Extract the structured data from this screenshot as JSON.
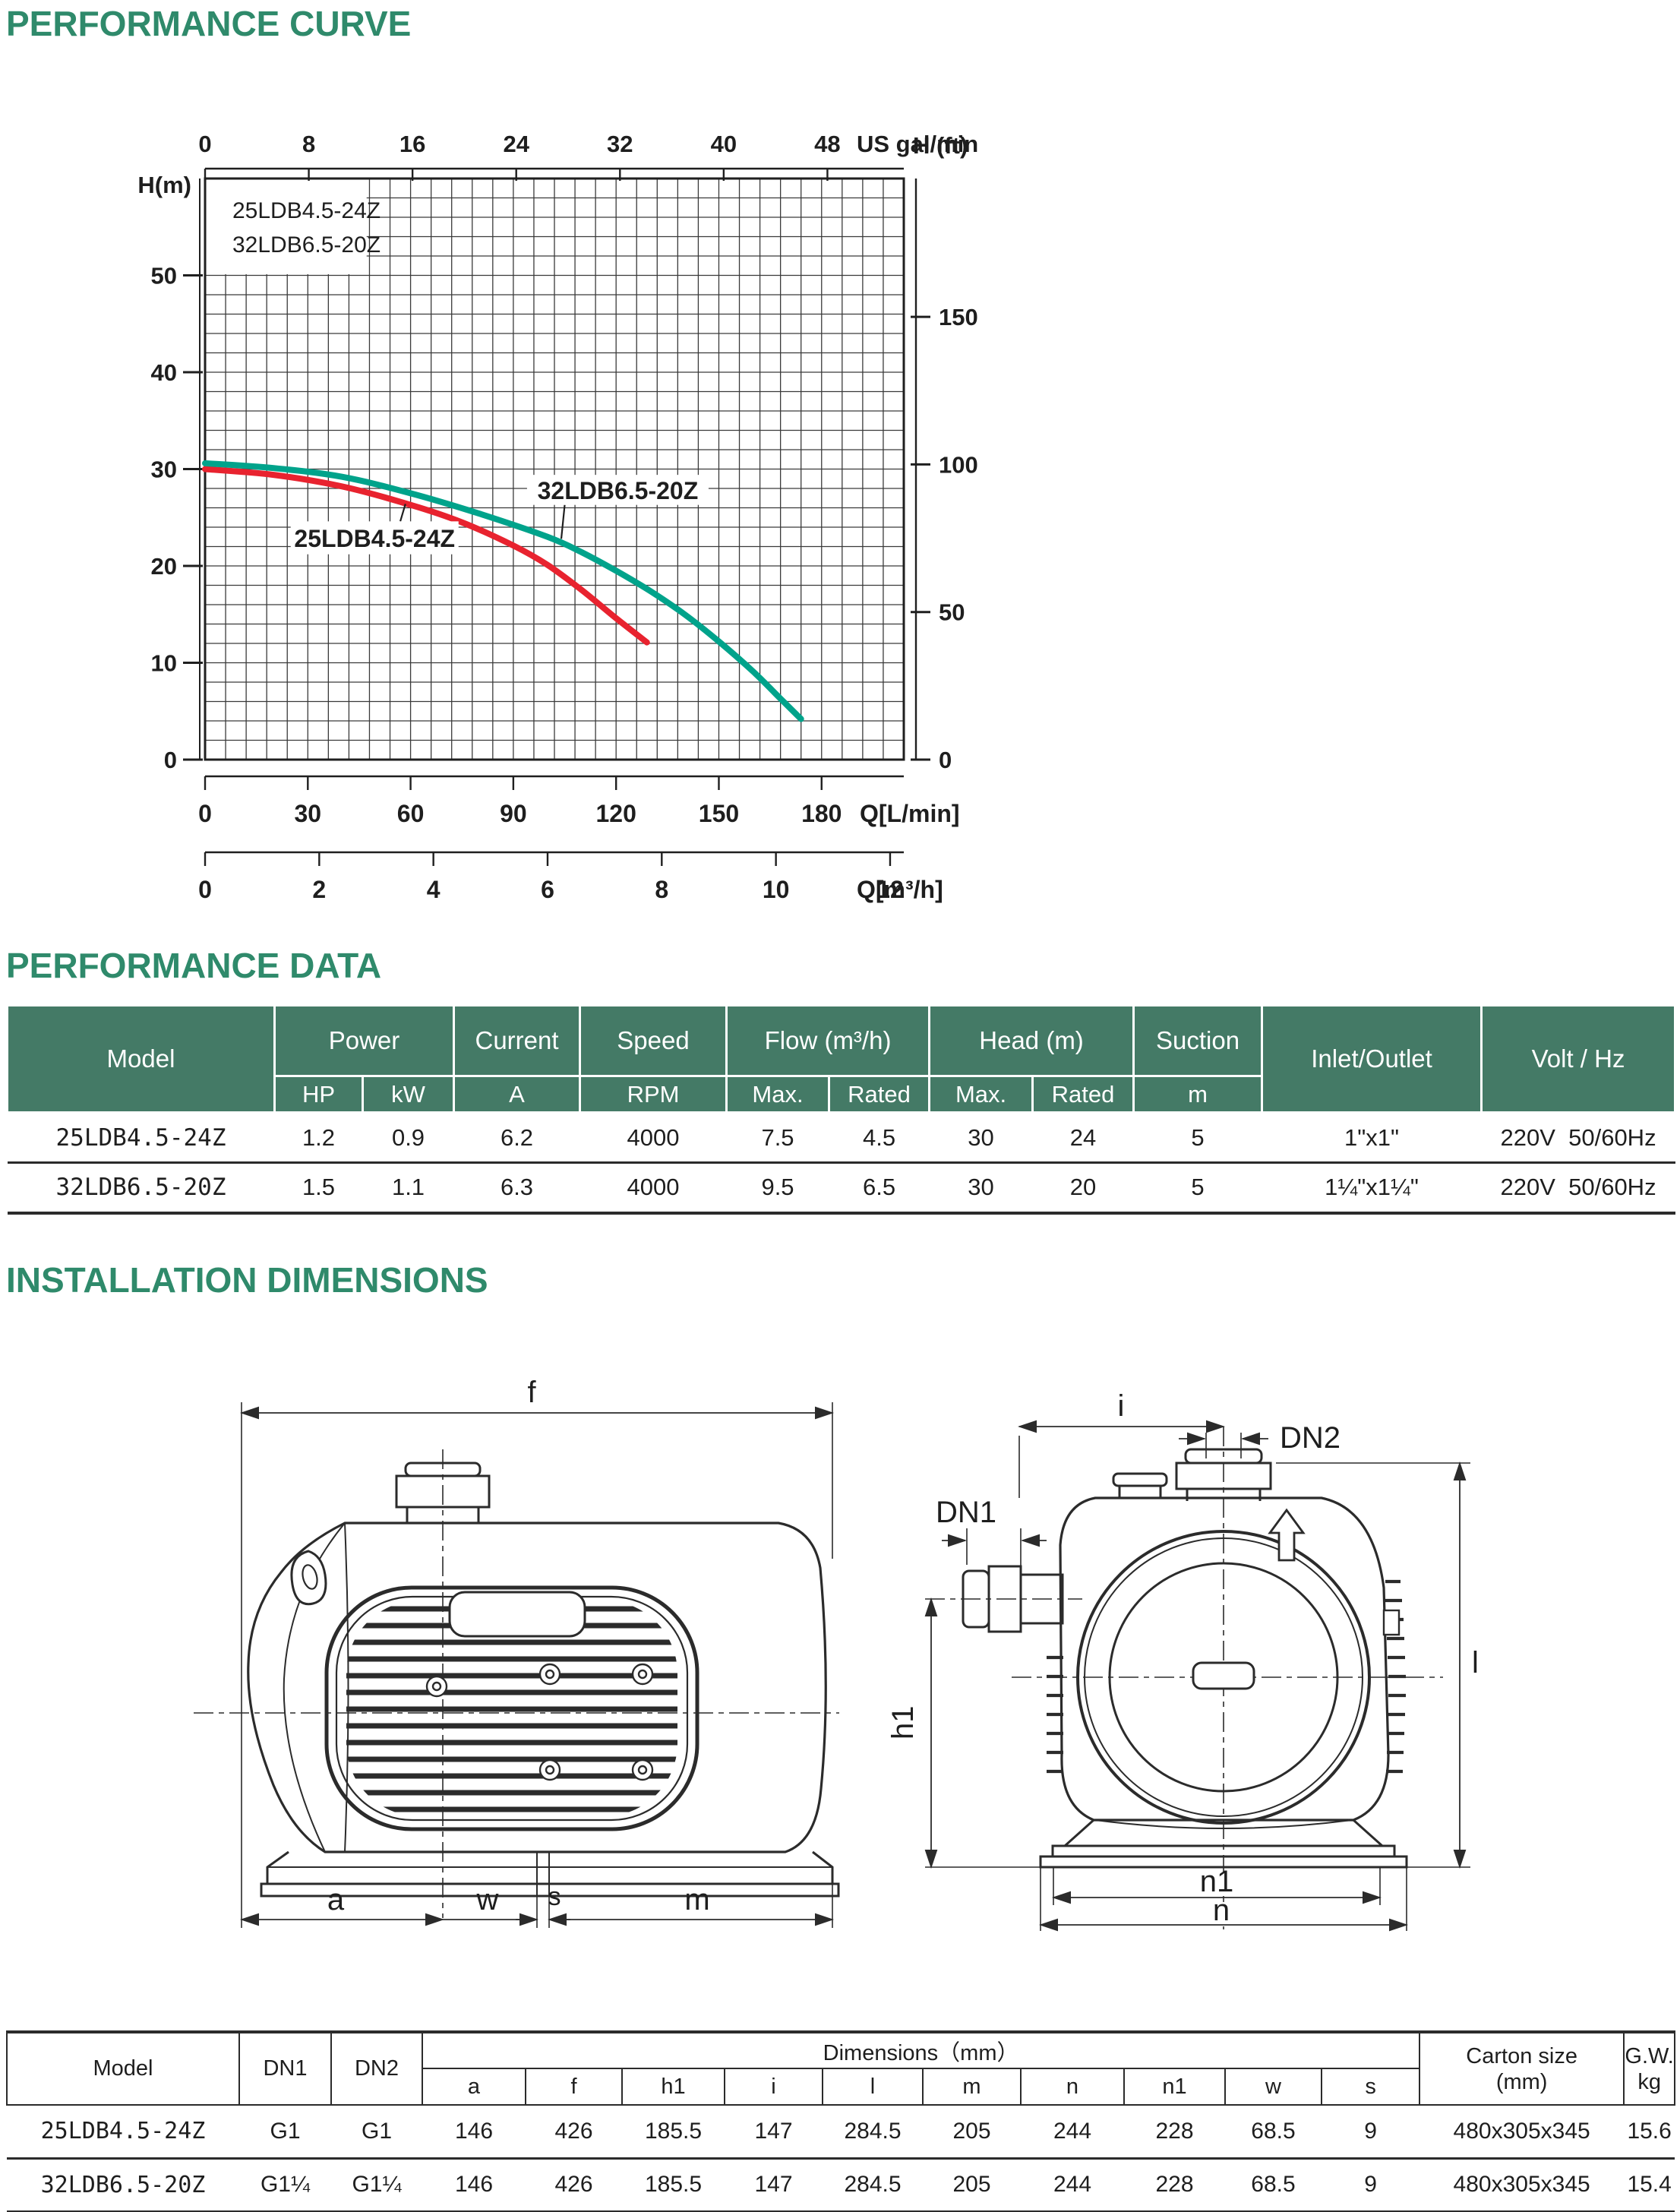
{
  "headings": {
    "curve": "PERFORMANCE CURVE",
    "data": "PERFORMANCE DATA",
    "dims": "INSTALLATION DIMENSIONS"
  },
  "colors": {
    "heading_green": "#2f8a6b",
    "table_header_green": "#447a66",
    "curve_red": "#e8232f",
    "curve_teal": "#00a38b",
    "line_dark": "#2b2b2b"
  },
  "chart_data": {
    "type": "line",
    "title": "",
    "grid": "on",
    "q_range_lmin": [
      0,
      204
    ],
    "h_range_m": [
      0,
      60
    ],
    "legend_lines": [
      "25LDB4.5-24Z",
      "32LDB6.5-20Z"
    ],
    "legend_region": {
      "q_to": 47.5,
      "h_from": 50
    },
    "axes": {
      "top": {
        "label": "US gal/min",
        "unit_to_lmin": 3.7854,
        "ticks": [
          0,
          8,
          16,
          24,
          32,
          40,
          48
        ]
      },
      "left": {
        "label": "H(m)",
        "ticks": [
          0,
          10,
          20,
          30,
          40,
          50
        ]
      },
      "right": {
        "label": "H (ft)",
        "ft_to_m": 0.3048,
        "ticks": [
          0,
          50,
          100,
          150
        ]
      },
      "bottom1": {
        "label": "Q[L/min]",
        "ticks": [
          0,
          30,
          60,
          90,
          120,
          150,
          180
        ]
      },
      "bottom2": {
        "label": "Q[m³/h]",
        "m3h_to_lmin": 16.6667,
        "ticks": [
          0,
          2,
          4,
          6,
          8,
          10,
          12
        ]
      }
    },
    "series": [
      {
        "name": "25LDB4.5-24Z",
        "color": "#e8232f",
        "points_q_lmin_h_m": [
          [
            0,
            30
          ],
          [
            20,
            29.4
          ],
          [
            40,
            28.2
          ],
          [
            60,
            26.3
          ],
          [
            75,
            24.5
          ],
          [
            90,
            22.1
          ],
          [
            100,
            20.1
          ],
          [
            110,
            17.5
          ],
          [
            120,
            14.6
          ],
          [
            129,
            12.1
          ]
        ]
      },
      {
        "name": "32LDB6.5-20Z",
        "color": "#00a38b",
        "points_q_lmin_h_m": [
          [
            0,
            30.6
          ],
          [
            20,
            30.1
          ],
          [
            40,
            29.2
          ],
          [
            60,
            27.5
          ],
          [
            80,
            25.4
          ],
          [
            100,
            23
          ],
          [
            110,
            21.4
          ],
          [
            120,
            19.5
          ],
          [
            130,
            17.4
          ],
          [
            140,
            15
          ],
          [
            150,
            12.2
          ],
          [
            160,
            9.1
          ],
          [
            168,
            6.3
          ],
          [
            174,
            4.2
          ]
        ]
      }
    ],
    "annotations": [
      {
        "text": "25LDB4.5-24Z",
        "box_q": [
          25,
          74
        ],
        "box_h": [
          21.2,
          24.6
        ],
        "leader_from_qh": [
          57,
          24.6
        ],
        "leader_to_qh": [
          58.5,
          26.4
        ]
      },
      {
        "text": "32LDB6.5-20Z",
        "box_q": [
          94,
          147
        ],
        "box_h": [
          26.3,
          29.4
        ],
        "leader_from_qh": [
          105,
          26.3
        ],
        "leader_to_qh": [
          104,
          22.8
        ]
      }
    ]
  },
  "perf_table": {
    "header_row1": [
      "Model",
      "Power",
      "Current",
      "Speed",
      "Flow (m³/h)",
      "Head (m)",
      "Suction",
      "Inlet/Outlet",
      "Volt / Hz"
    ],
    "header_row2": [
      "HP",
      "kW",
      "A",
      "RPM",
      "Max.",
      "Rated",
      "Max.",
      "Rated",
      "m"
    ],
    "rows": [
      [
        "25LDB4.5-24Z",
        "1.2",
        "0.9",
        "6.2",
        "4000",
        "7.5",
        "4.5",
        "30",
        "24",
        "5",
        "1\"x1\"",
        "220V  50/60Hz"
      ],
      [
        "32LDB6.5-20Z",
        "1.5",
        "1.1",
        "6.3",
        "4000",
        "9.5",
        "6.5",
        "30",
        "20",
        "5",
        "1¼\"x1¼\"",
        "220V  50/60Hz"
      ]
    ]
  },
  "drawings": {
    "side": {
      "f": "f",
      "a": "a",
      "w": "w",
      "s": "s",
      "m": "m"
    },
    "front": {
      "i": "i",
      "dn1": "DN1",
      "dn2": "DN2",
      "h1": "h1",
      "l": "l",
      "n1": "n1",
      "n": "n"
    }
  },
  "dim_table": {
    "headers": {
      "model": "Model",
      "dn1": "DN1",
      "dn2": "DN2",
      "dims": "Dimensions（mm）",
      "sub": [
        "a",
        "f",
        "h1",
        "i",
        "l",
        "m",
        "n",
        "n1",
        "w",
        "s"
      ],
      "carton1": "Carton size",
      "carton2": "(mm)",
      "gw1": "G.W.",
      "gw2": "kg"
    },
    "rows": [
      [
        "25LDB4.5-24Z",
        "G1",
        "G1",
        "146",
        "426",
        "185.5",
        "147",
        "284.5",
        "205",
        "244",
        "228",
        "68.5",
        "9",
        "480x305x345",
        "15.6"
      ],
      [
        "32LDB6.5-20Z",
        "G1¼",
        "G1¼",
        "146",
        "426",
        "185.5",
        "147",
        "284.5",
        "205",
        "244",
        "228",
        "68.5",
        "9",
        "480x305x345",
        "15.4"
      ]
    ]
  }
}
